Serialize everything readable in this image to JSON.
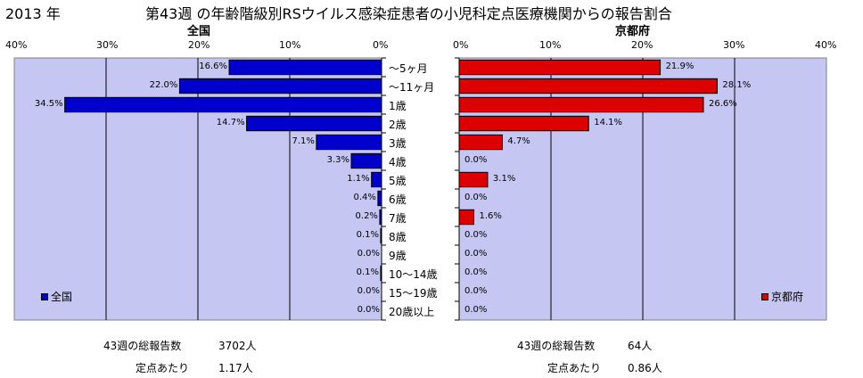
{
  "header": {
    "year": "2013 年",
    "title": "第43週 の年齢階級別RSウイルス感染症患者の小児科定点医療機関からの報告割合"
  },
  "chart_data": [
    {
      "type": "bar",
      "orientation": "horizontal",
      "direction": "right-to-left",
      "title": "全国",
      "legend": "全国",
      "legend_position": "bottom-left",
      "color": "#0000cc",
      "plot_bg": "#c6c6f2",
      "xlim": [
        0,
        40
      ],
      "tick_labels": [
        "40%",
        "30%",
        "20%",
        "10%",
        "0%"
      ],
      "grid": true,
      "categories": [
        "〜5ヶ月",
        "〜11ヶ月",
        "1歳",
        "2歳",
        "3歳",
        "4歳",
        "5歳",
        "6歳",
        "7歳",
        "8歳",
        "9歳",
        "10〜14歳",
        "15〜19歳",
        "20歳以上"
      ],
      "values": [
        16.6,
        22.0,
        34.5,
        14.7,
        7.1,
        3.3,
        1.1,
        0.4,
        0.2,
        0.1,
        0.0,
        0.1,
        0.0,
        0.0
      ],
      "value_labels": [
        "16.6%",
        "22.0%",
        "34.5%",
        "14.7%",
        "7.1%",
        "3.3%",
        "1.1%",
        "0.4%",
        "0.2%",
        "0.1%",
        "0.0%",
        "0.1%",
        "0.0%",
        "0.0%"
      ]
    },
    {
      "type": "bar",
      "orientation": "horizontal",
      "direction": "left-to-right",
      "title": "京都府",
      "legend": "京都府",
      "legend_position": "bottom-right",
      "color": "#dd0000",
      "plot_bg": "#c6c6f2",
      "xlim": [
        0,
        40
      ],
      "tick_labels": [
        "0%",
        "10%",
        "20%",
        "30%",
        "40%"
      ],
      "grid": true,
      "categories": [
        "〜5ヶ月",
        "〜11ヶ月",
        "1歳",
        "2歳",
        "3歳",
        "4歳",
        "5歳",
        "6歳",
        "7歳",
        "8歳",
        "9歳",
        "10〜14歳",
        "15〜19歳",
        "20歳以上"
      ],
      "values": [
        21.9,
        28.1,
        26.6,
        14.1,
        4.7,
        0.0,
        3.1,
        0.0,
        1.6,
        0.0,
        0.0,
        0.0,
        0.0,
        0.0
      ],
      "value_labels": [
        "21.9%",
        "28.1%",
        "26.6%",
        "14.1%",
        "4.7%",
        "0.0%",
        "3.1%",
        "0.0%",
        "1.6%",
        "0.0%",
        "0.0%",
        "0.0%",
        "0.0%",
        "0.0%"
      ]
    }
  ],
  "footer": {
    "national": {
      "total_label": "43週の総報告数",
      "total_value": "3702人",
      "per_site_label": "定点あたり",
      "per_site_value": "1.17人"
    },
    "kyoto": {
      "total_label": "43週の総報告数",
      "total_value": "64人",
      "per_site_label": "定点あたり",
      "per_site_value": "0.86人"
    }
  }
}
